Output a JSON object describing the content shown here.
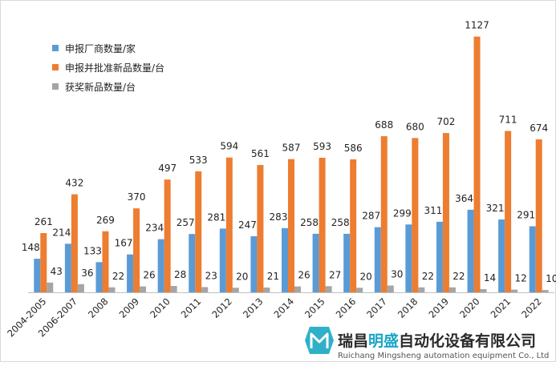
{
  "chart_data": {
    "type": "bar",
    "categories": [
      "2004-2005",
      "2006-2007",
      "2008",
      "2009",
      "2010",
      "2011",
      "2012",
      "2013",
      "2014",
      "2015",
      "2016",
      "2017",
      "2018",
      "2019",
      "2020",
      "2021",
      "2022"
    ],
    "series": [
      {
        "name": "申报厂商数量/家",
        "color": "#5b9bd5",
        "values": [
          148,
          214,
          133,
          167,
          234,
          257,
          281,
          247,
          283,
          258,
          258,
          287,
          299,
          311,
          364,
          321,
          291
        ]
      },
      {
        "name": "申报并批准新品数量/台",
        "color": "#ed7d31",
        "values": [
          261,
          432,
          269,
          370,
          497,
          533,
          594,
          561,
          587,
          593,
          586,
          688,
          680,
          702,
          1127,
          711,
          674
        ]
      },
      {
        "name": "获奖新品数量/台",
        "color": "#a5a5a5",
        "values": [
          43,
          36,
          22,
          26,
          28,
          23,
          20,
          21,
          26,
          27,
          20,
          30,
          22,
          22,
          14,
          12,
          10
        ]
      }
    ],
    "ylim": [
      0,
      1200
    ],
    "title": "",
    "xlabel": "",
    "ylabel": "",
    "legend_position": "top-left"
  },
  "watermark": {
    "company_cn_a": "瑞昌",
    "company_cn_b": "明盛",
    "company_cn_c": "自动化设备有限公司",
    "company_en": "Ruichang Mingsheng automation equipment Co., Ltd"
  }
}
